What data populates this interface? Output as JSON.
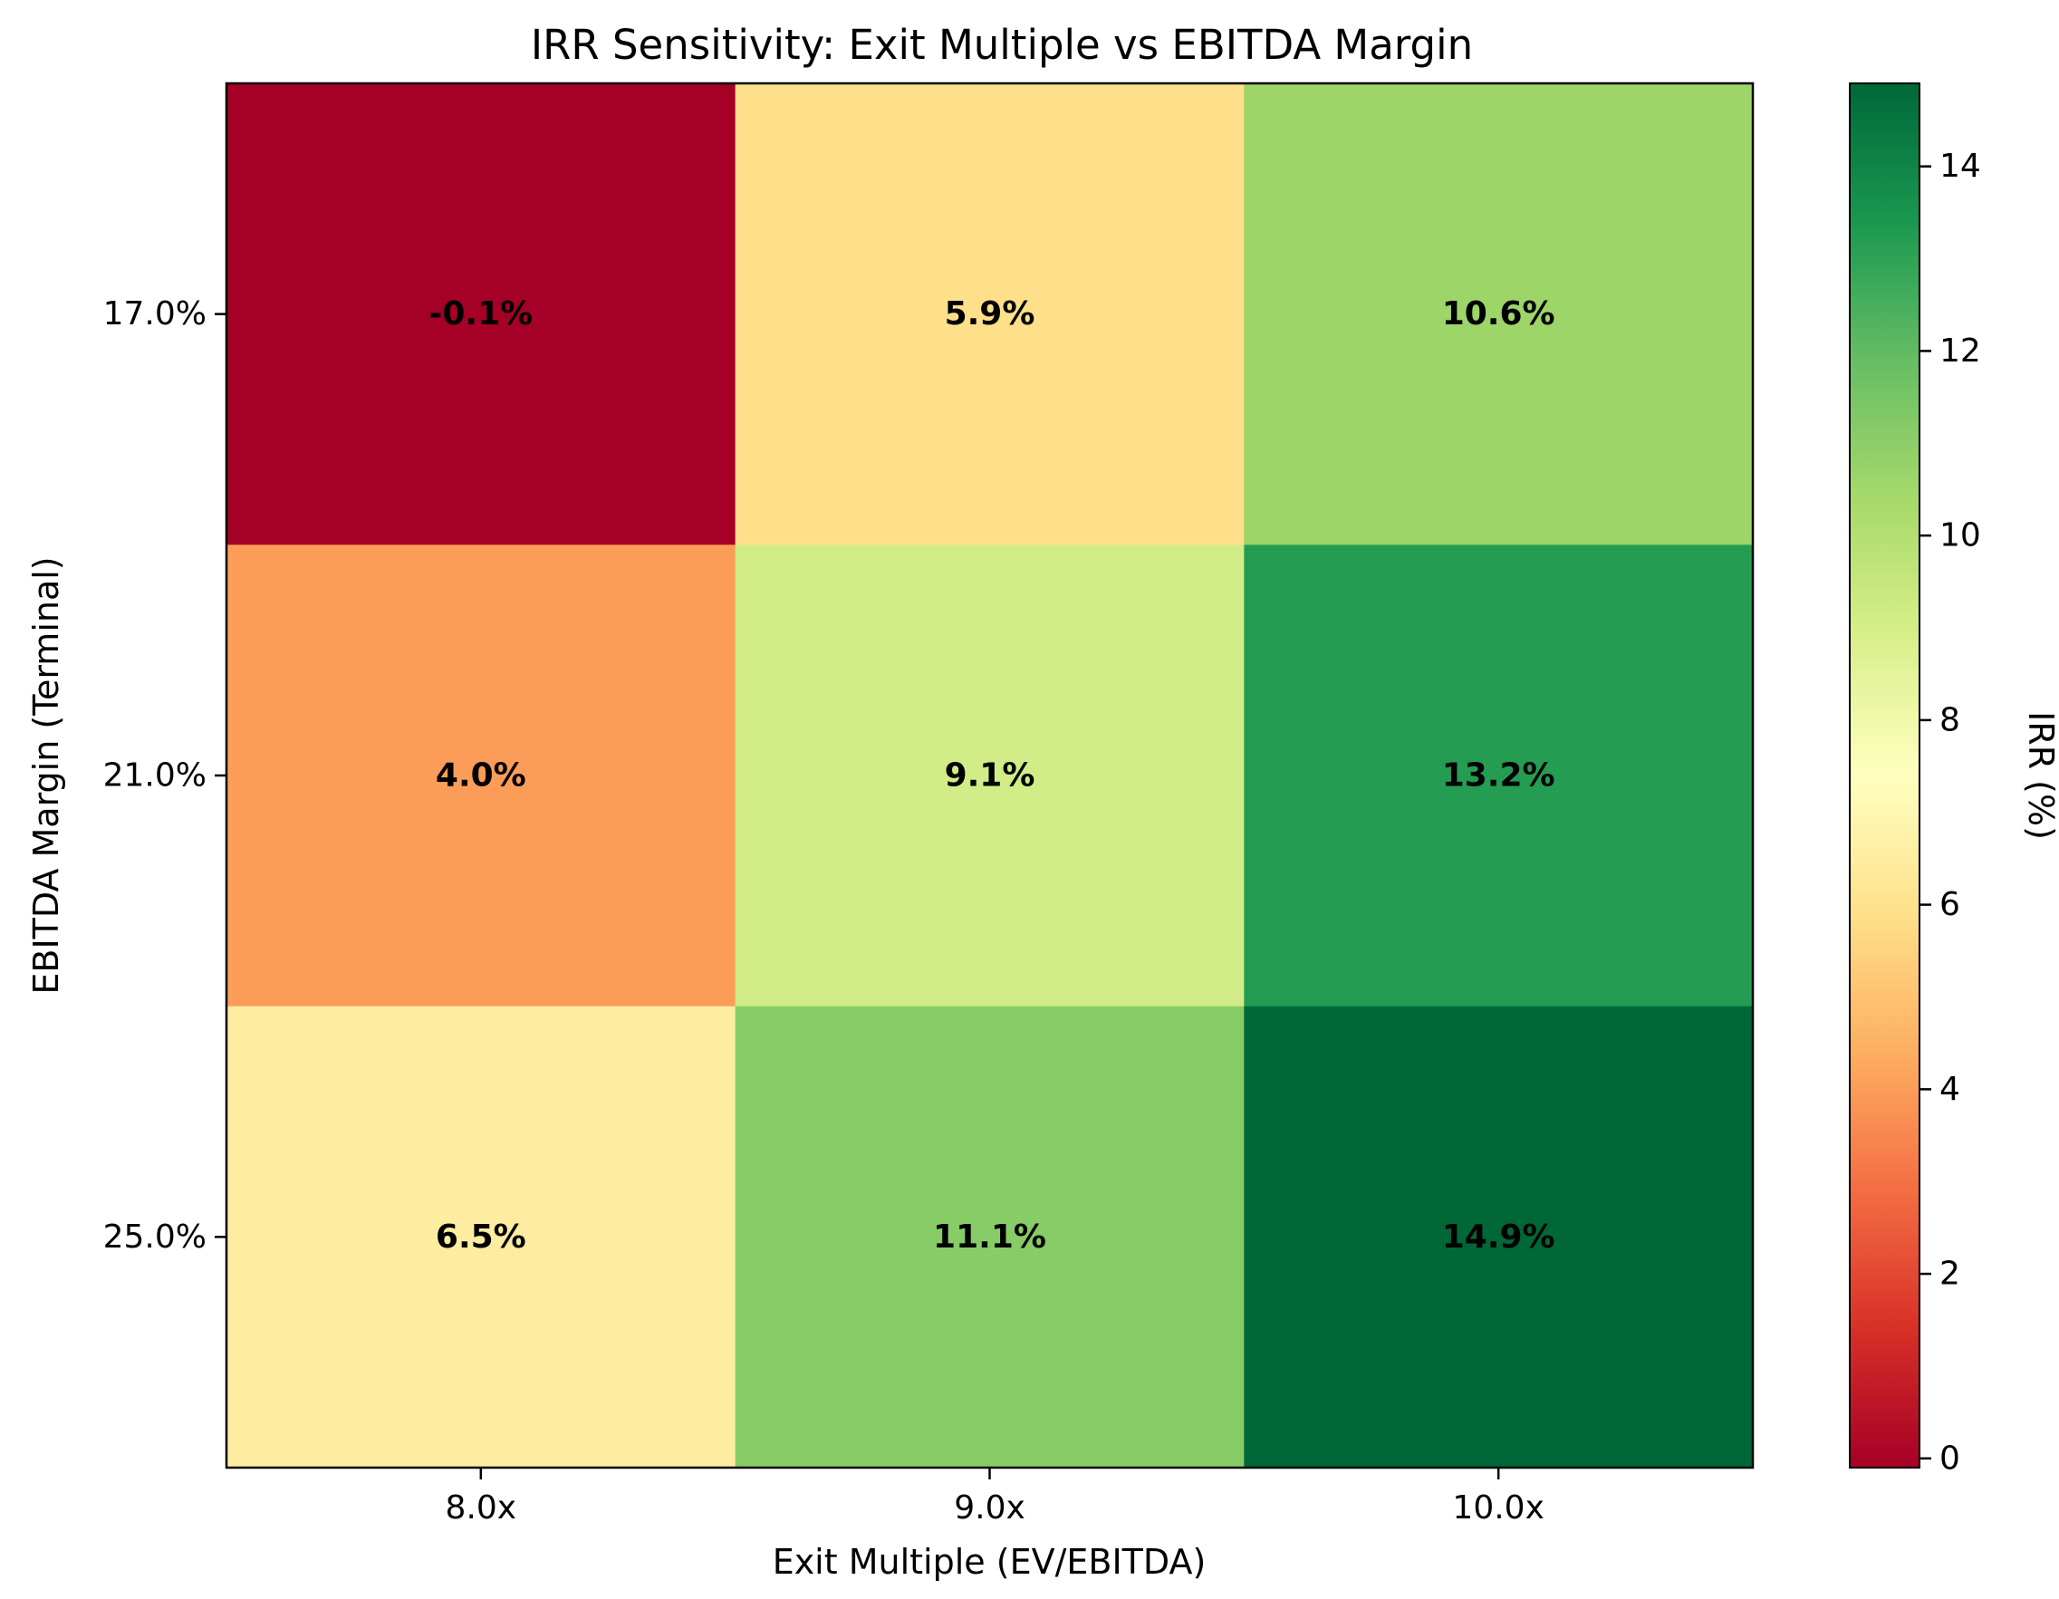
{
  "chart_data": {
    "type": "heatmap",
    "title": "IRR Sensitivity: Exit Multiple vs EBITDA Margin",
    "xlabel": "Exit Multiple (EV/EBITDA)",
    "ylabel": "EBITDA Margin (Terminal)",
    "x_categories": [
      "8.0x",
      "9.0x",
      "10.0x"
    ],
    "y_categories": [
      "17.0%",
      "21.0%",
      "25.0%"
    ],
    "values": [
      [
        -0.1,
        5.9,
        10.6
      ],
      [
        4.0,
        9.1,
        13.2
      ],
      [
        6.5,
        11.1,
        14.9
      ]
    ],
    "cell_labels": [
      [
        "-0.1%",
        "5.9%",
        "10.6%"
      ],
      [
        "4.0%",
        "9.1%",
        "13.2%"
      ],
      [
        "6.5%",
        "11.1%",
        "14.9%"
      ]
    ],
    "colormap": "RdYlGn",
    "colorbar": {
      "label": "IRR (%)",
      "range": [
        -0.1,
        14.9
      ],
      "ticks": [
        0,
        2,
        4,
        6,
        8,
        10,
        12,
        14
      ],
      "tick_labels": [
        "0",
        "2",
        "4",
        "6",
        "8",
        "10",
        "12",
        "14"
      ]
    }
  }
}
